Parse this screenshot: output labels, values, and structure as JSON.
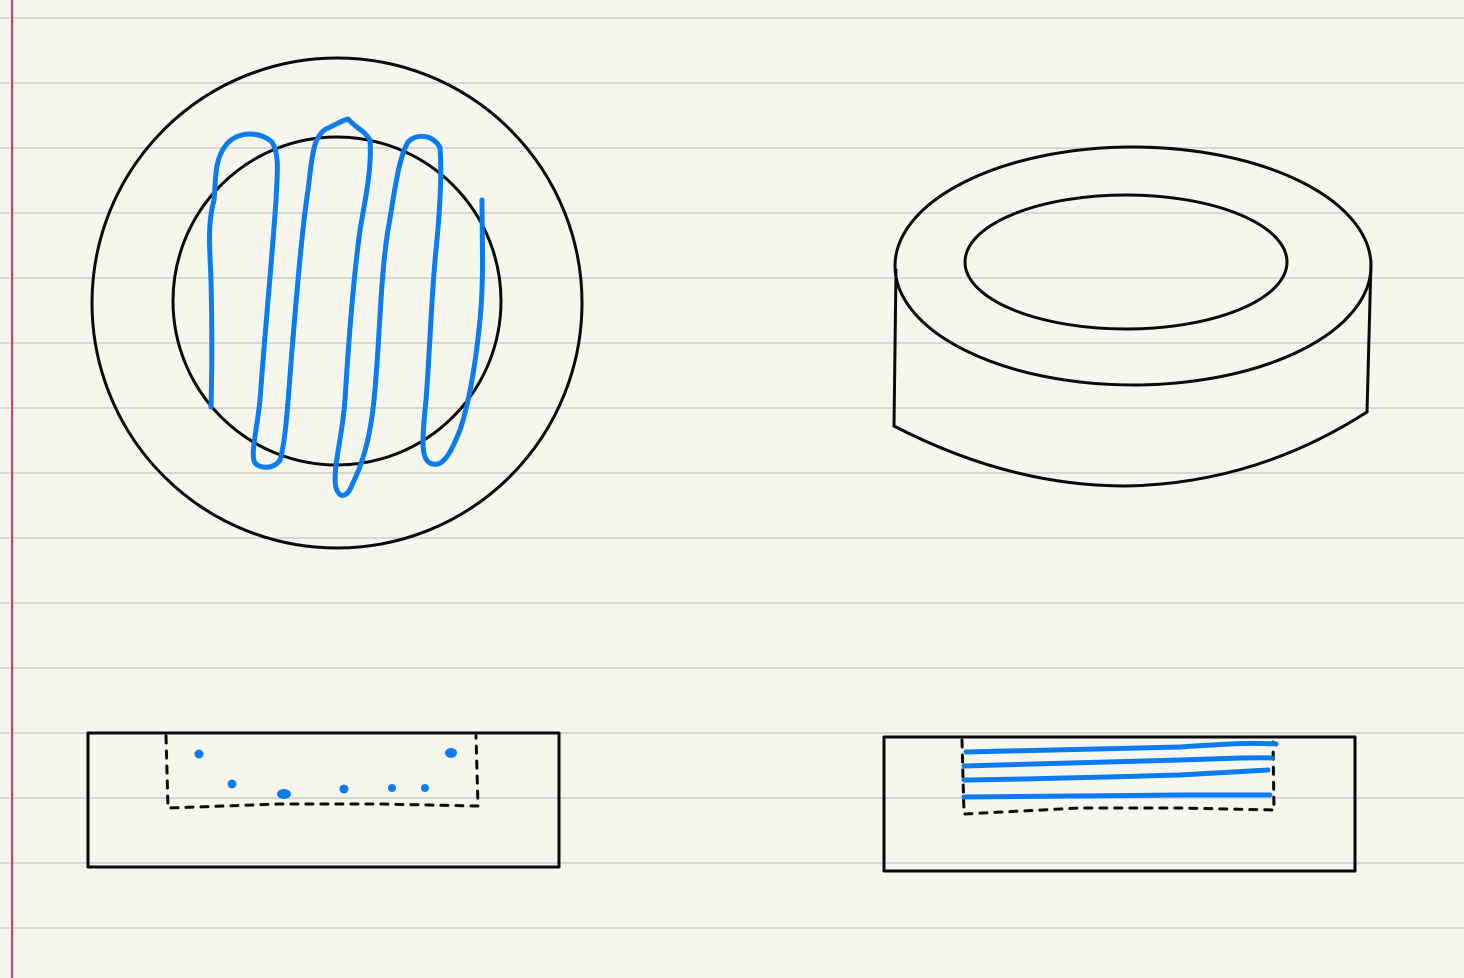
{
  "paper": {
    "background_color": "#f7f6ec",
    "rule_color": "#d6d8d6",
    "margin_color": "#d2405a"
  },
  "ink": {
    "outline_color": "#0a0a0a",
    "highlight_color": "#0b7bf0"
  },
  "sketches": [
    {
      "name": "ring-top-view",
      "fill": "vertical-scribble"
    },
    {
      "name": "ring-perspective-view",
      "fill": "none"
    },
    {
      "name": "block-with-dotted-recess",
      "fill": "dots"
    },
    {
      "name": "block-with-lined-recess",
      "fill": "horizontal-lines"
    }
  ]
}
